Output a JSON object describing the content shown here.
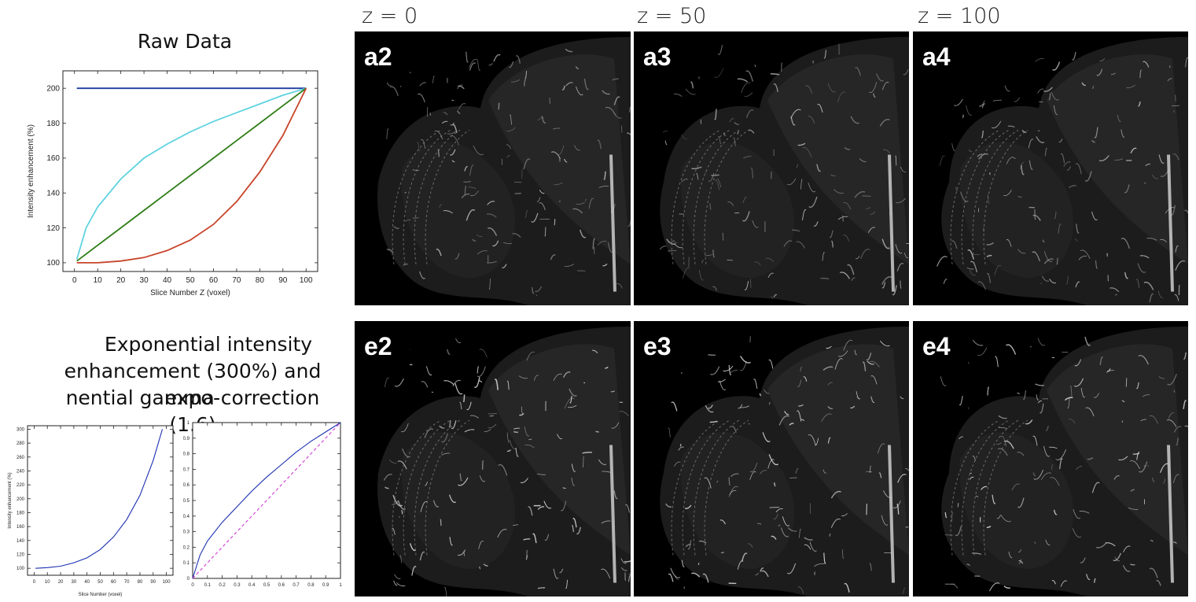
{
  "column_titles": [
    "z = 0",
    "z = 50",
    "z = 100"
  ],
  "left": {
    "top_heading": "Raw Data",
    "bottom_heading_lines": [
      "Exponential intensity",
      "enhancement (300%) and expo-",
      "nential gamma correction (1.6)"
    ]
  },
  "panels": [
    {
      "label": "a2",
      "row": 0,
      "col": 0
    },
    {
      "label": "a3",
      "row": 0,
      "col": 1
    },
    {
      "label": "a4",
      "row": 0,
      "col": 2
    },
    {
      "label": "e2",
      "row": 1,
      "col": 0
    },
    {
      "label": "e3",
      "row": 1,
      "col": 1
    },
    {
      "label": "e4",
      "row": 1,
      "col": 2
    }
  ],
  "colors": {
    "flat": "#1f3f9f",
    "log": "#5fd3e0",
    "linear": "#2e7d16",
    "exponential": "#c8442a",
    "blue": "#1a2fb0",
    "dashed": "#d23bd6"
  },
  "chart_data": [
    {
      "type": "line",
      "xlabel": "Slice Number Z (voxel)",
      "ylabel": "Intensity enhancement (%)",
      "xlim": [
        -5,
        105
      ],
      "ylim": [
        95,
        210
      ],
      "xticks": [
        0,
        10,
        20,
        30,
        40,
        50,
        60,
        70,
        80,
        90,
        100
      ],
      "yticks": [
        100,
        120,
        140,
        160,
        180,
        200
      ],
      "x": [
        1,
        5,
        10,
        20,
        30,
        40,
        50,
        60,
        70,
        80,
        90,
        100
      ],
      "series": [
        {
          "color": "flat",
          "values": [
            200,
            200,
            200,
            200,
            200,
            200,
            200,
            200,
            200,
            200,
            200,
            200
          ]
        },
        {
          "color": "log",
          "values": [
            102,
            120,
            132,
            148,
            160,
            168,
            175,
            181,
            186,
            191,
            196,
            200
          ]
        },
        {
          "color": "linear",
          "values": [
            101,
            105,
            110,
            120,
            130,
            140,
            150,
            160,
            170,
            180,
            190,
            200
          ]
        },
        {
          "color": "exponential",
          "values": [
            100,
            100,
            100,
            101,
            103,
            107,
            113,
            122,
            135,
            152,
            173,
            200
          ]
        }
      ]
    },
    {
      "type": "line",
      "xlabel": "Slice Number (voxel)",
      "ylabel": "Intensity enhancement (%)",
      "xlim": [
        -5,
        105
      ],
      "ylim": [
        90,
        305
      ],
      "xticks": [
        0,
        10,
        20,
        30,
        40,
        50,
        60,
        70,
        80,
        90,
        100
      ],
      "yticks": [
        100,
        120,
        140,
        160,
        180,
        200,
        220,
        240,
        260,
        280,
        300
      ],
      "x": [
        1,
        10,
        20,
        30,
        40,
        50,
        60,
        70,
        80,
        90,
        97
      ],
      "series": [
        {
          "color": "blue",
          "values": [
            100,
            101,
            103,
            108,
            115,
            127,
            145,
            170,
            205,
            255,
            300
          ]
        }
      ]
    },
    {
      "type": "line",
      "xlabel": "",
      "ylabel": "",
      "xlim": [
        0,
        1
      ],
      "ylim": [
        0,
        1
      ],
      "xticks": [
        0,
        0.1,
        0.2,
        0.3,
        0.4,
        0.5,
        0.6,
        0.7,
        0.8,
        0.9,
        1
      ],
      "yticks": [
        0,
        0.1,
        0.2,
        0.3,
        0.4,
        0.5,
        0.6,
        0.7,
        0.8,
        0.9,
        1
      ],
      "x": [
        0,
        0.05,
        0.1,
        0.2,
        0.3,
        0.4,
        0.5,
        0.6,
        0.7,
        0.8,
        0.9,
        1
      ],
      "series": [
        {
          "color": "blue",
          "values": [
            0,
            0.15,
            0.24,
            0.36,
            0.46,
            0.56,
            0.65,
            0.73,
            0.81,
            0.88,
            0.94,
            1
          ]
        },
        {
          "color": "dashed",
          "dashed": true,
          "values": [
            0,
            0.05,
            0.1,
            0.2,
            0.3,
            0.4,
            0.5,
            0.6,
            0.7,
            0.8,
            0.9,
            1
          ]
        }
      ]
    }
  ]
}
